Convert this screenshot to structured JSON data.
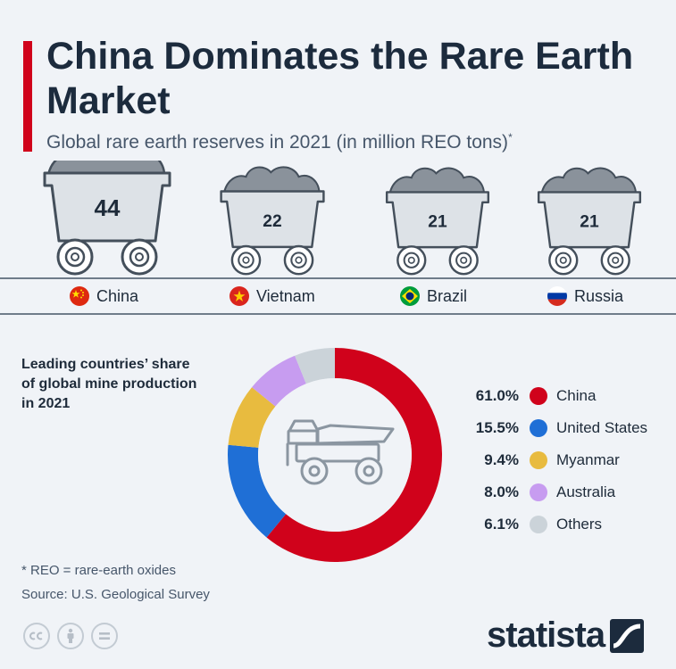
{
  "header": {
    "title": "China Dominates the Rare Earth Market",
    "subtitle": "Global rare earth reserves in 2021 (in million REO tons)",
    "subtitle_mark": "*"
  },
  "share_section": {
    "label": "Leading countries’ share of global mine production in 2021"
  },
  "footnote": {
    "definition": "* REO = rare-earth oxides",
    "source": "Source: U.S. Geological Survey"
  },
  "license_icons": [
    "cc-icon",
    "attribution-icon",
    "no-derivatives-icon"
  ],
  "brand": {
    "name": "statista"
  },
  "colors": {
    "accent": "#d0021b",
    "navy": "#1c2b3d",
    "cart": "#dde2e7",
    "ore": "#8a929b"
  },
  "chart_data": [
    {
      "type": "bar",
      "title": "Global rare earth reserves in 2021 (in million REO tons)",
      "categories": [
        "China",
        "Vietnam",
        "Brazil",
        "Russia"
      ],
      "values": [
        44,
        22,
        21,
        21
      ],
      "labels": [
        "44",
        "22",
        "21",
        "21"
      ],
      "flags": [
        "china-flag-icon",
        "vietnam-flag-icon",
        "brazil-flag-icon",
        "russia-flag-icon"
      ]
    },
    {
      "type": "pie",
      "title": "Leading countries’ share of global mine production in 2021",
      "center_icon": "mining-truck-icon",
      "slices": [
        {
          "label": "China",
          "value": 61.0,
          "display": "61.0%",
          "color": "#d0021b"
        },
        {
          "label": "United States",
          "value": 15.5,
          "display": "15.5%",
          "color": "#1f6fd6"
        },
        {
          "label": "Myanmar",
          "value": 9.4,
          "display": "9.4%",
          "color": "#e8bb3f"
        },
        {
          "label": "Australia",
          "value": 8.0,
          "display": "8.0%",
          "color": "#c79cf0"
        },
        {
          "label": "Others",
          "value": 6.1,
          "display": "6.1%",
          "color": "#cbd3d9"
        }
      ]
    }
  ]
}
